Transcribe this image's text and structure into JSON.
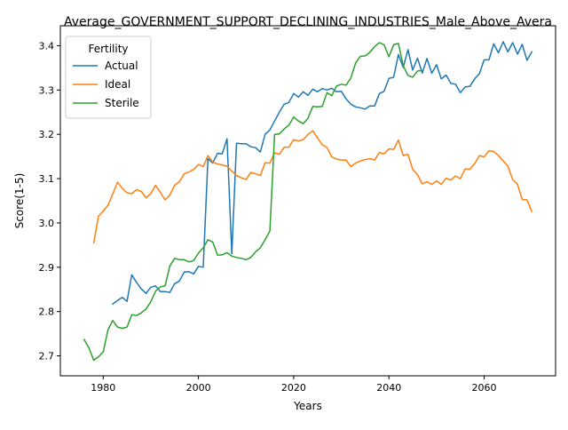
{
  "chart_data": {
    "type": "line",
    "title": "Average_GOVERNMENT_SUPPORT_DECLINING_INDUSTRIES_Male_Above_Avera",
    "xlabel": "Years",
    "ylabel": "Score(1-5)",
    "xlim": [
      1971,
      2075
    ],
    "ylim": [
      2.655,
      3.445
    ],
    "xticks": [
      1980,
      2000,
      2020,
      2040,
      2060
    ],
    "yticks": [
      2.7,
      2.8,
      2.9,
      3.0,
      3.1,
      3.2,
      3.3,
      3.4
    ],
    "grid": false,
    "legend": {
      "title": "Fertility",
      "position": "top-left"
    },
    "series": [
      {
        "name": "Actual",
        "color": "#1f77b4",
        "x": [
          1982,
          1983,
          1984,
          1985,
          1986,
          1987,
          1988,
          1989,
          1990,
          1991,
          1992,
          1993,
          1994,
          1995,
          1996,
          1997,
          1998,
          1999,
          2000,
          2001,
          2002,
          2003,
          2004,
          2005,
          2006,
          2007,
          2008,
          2009,
          2010,
          2011,
          2012,
          2013,
          2014,
          2015,
          2016,
          2017,
          2018,
          2019,
          2020,
          2021,
          2022,
          2023,
          2024,
          2025,
          2026,
          2027,
          2028,
          2029,
          2030,
          2031,
          2032,
          2033,
          2034,
          2035,
          2036,
          2037,
          2038,
          2039,
          2040,
          2041,
          2042,
          2043,
          2044,
          2045,
          2046,
          2047,
          2048,
          2049,
          2050,
          2051,
          2052,
          2053,
          2054,
          2055,
          2056,
          2057,
          2058,
          2059,
          2060,
          2061,
          2062,
          2063,
          2064,
          2065,
          2066,
          2067,
          2068,
          2069,
          2070
        ],
        "values": [
          2.817,
          2.825,
          2.832,
          2.823,
          2.883,
          2.866,
          2.851,
          2.841,
          2.855,
          2.858,
          2.845,
          2.845,
          2.843,
          2.863,
          2.869,
          2.889,
          2.89,
          2.885,
          2.902,
          2.9,
          3.145,
          3.135,
          3.157,
          3.156,
          3.19,
          2.93,
          3.18,
          3.179,
          3.179,
          3.172,
          3.17,
          3.16,
          3.2,
          3.21,
          3.23,
          3.25,
          3.268,
          3.272,
          3.292,
          3.284,
          3.296,
          3.288,
          3.302,
          3.296,
          3.303,
          3.3,
          3.304,
          3.296,
          3.297,
          3.28,
          3.268,
          3.262,
          3.26,
          3.257,
          3.264,
          3.264,
          3.292,
          3.297,
          3.326,
          3.329,
          3.38,
          3.351,
          3.391,
          3.345,
          3.372,
          3.338,
          3.371,
          3.338,
          3.357,
          3.325,
          3.334,
          3.315,
          3.313,
          3.294,
          3.307,
          3.308,
          3.325,
          3.337,
          3.368,
          3.368,
          3.404,
          3.384,
          3.409,
          3.386,
          3.407,
          3.381,
          3.403,
          3.367,
          3.386
        ]
      },
      {
        "name": "Ideal",
        "color": "#ff7f0e",
        "x": [
          1978,
          1979,
          1980,
          1981,
          1982,
          1983,
          1984,
          1985,
          1986,
          1987,
          1988,
          1989,
          1990,
          1991,
          1992,
          1993,
          1994,
          1995,
          1996,
          1997,
          1998,
          1999,
          2000,
          2001,
          2002,
          2003,
          2004,
          2005,
          2006,
          2007,
          2008,
          2009,
          2010,
          2011,
          2012,
          2013,
          2014,
          2015,
          2016,
          2017,
          2018,
          2019,
          2020,
          2021,
          2022,
          2023,
          2024,
          2025,
          2026,
          2027,
          2028,
          2029,
          2030,
          2031,
          2032,
          2033,
          2034,
          2035,
          2036,
          2037,
          2038,
          2039,
          2040,
          2041,
          2042,
          2043,
          2044,
          2045,
          2046,
          2047,
          2048,
          2049,
          2050,
          2051,
          2052,
          2053,
          2054,
          2055,
          2056,
          2057,
          2058,
          2059,
          2060,
          2061,
          2062,
          2063,
          2064,
          2065,
          2066,
          2067,
          2068,
          2069,
          2070
        ],
        "values": [
          2.955,
          3.015,
          3.027,
          3.04,
          3.065,
          3.092,
          3.078,
          3.068,
          3.066,
          3.075,
          3.071,
          3.057,
          3.066,
          3.085,
          3.069,
          3.052,
          3.063,
          3.085,
          3.093,
          3.111,
          3.115,
          3.121,
          3.132,
          3.127,
          3.152,
          3.137,
          3.133,
          3.131,
          3.128,
          3.117,
          3.107,
          3.102,
          3.098,
          3.114,
          3.111,
          3.107,
          3.136,
          3.135,
          3.158,
          3.155,
          3.171,
          3.171,
          3.188,
          3.185,
          3.188,
          3.2,
          3.208,
          3.192,
          3.177,
          3.17,
          3.149,
          3.144,
          3.142,
          3.142,
          3.127,
          3.135,
          3.14,
          3.143,
          3.145,
          3.142,
          3.159,
          3.156,
          3.167,
          3.166,
          3.187,
          3.152,
          3.155,
          3.121,
          3.109,
          3.088,
          3.093,
          3.087,
          3.095,
          3.087,
          3.101,
          3.097,
          3.106,
          3.1,
          3.122,
          3.121,
          3.134,
          3.152,
          3.149,
          3.163,
          3.161,
          3.152,
          3.14,
          3.128,
          3.098,
          3.087,
          3.053,
          3.052,
          3.026
        ]
      },
      {
        "name": "Sterile",
        "color": "#2ca02c",
        "x": [
          1976,
          1977,
          1978,
          1979,
          1980,
          1981,
          1982,
          1983,
          1984,
          1985,
          1986,
          1987,
          1988,
          1989,
          1990,
          1991,
          1992,
          1993,
          1994,
          1995,
          1996,
          1997,
          1998,
          1999,
          2000,
          2001,
          2002,
          2003,
          2004,
          2005,
          2006,
          2007,
          2008,
          2009,
          2010,
          2011,
          2012,
          2013,
          2014,
          2015,
          2016,
          2017,
          2018,
          2019,
          2020,
          2021,
          2022,
          2023,
          2024,
          2025,
          2026,
          2027,
          2028,
          2029,
          2030,
          2031,
          2032,
          2033,
          2034,
          2035,
          2036,
          2037,
          2038,
          2039,
          2040,
          2041,
          2042,
          2043,
          2044,
          2045,
          2046,
          2047
        ],
        "values": [
          2.737,
          2.718,
          2.69,
          2.698,
          2.709,
          2.759,
          2.78,
          2.765,
          2.762,
          2.765,
          2.793,
          2.791,
          2.797,
          2.806,
          2.822,
          2.846,
          2.856,
          2.858,
          2.903,
          2.92,
          2.917,
          2.917,
          2.912,
          2.915,
          2.932,
          2.944,
          2.962,
          2.957,
          2.927,
          2.928,
          2.933,
          2.925,
          2.922,
          2.92,
          2.917,
          2.922,
          2.935,
          2.944,
          2.962,
          2.982,
          3.2,
          3.201,
          3.212,
          3.221,
          3.239,
          3.23,
          3.224,
          3.236,
          3.263,
          3.262,
          3.263,
          3.294,
          3.287,
          3.309,
          3.313,
          3.311,
          3.327,
          3.361,
          3.376,
          3.377,
          3.385,
          3.398,
          3.407,
          3.402,
          3.375,
          3.402,
          3.405,
          3.355,
          3.333,
          3.329,
          3.343,
          3.344
        ]
      }
    ]
  }
}
